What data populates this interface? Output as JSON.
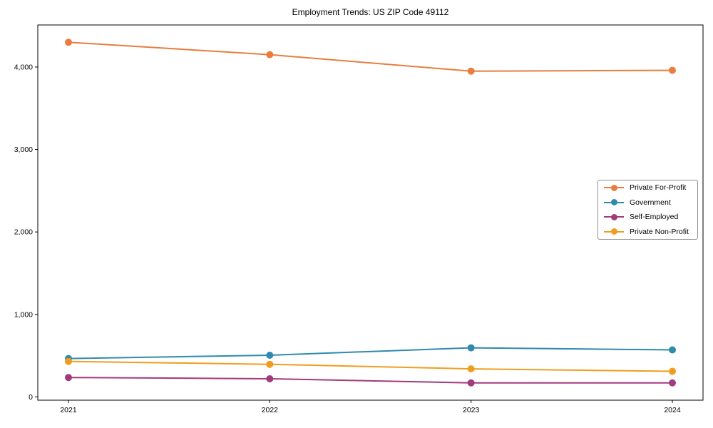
{
  "chart_data": {
    "type": "line",
    "title": "Employment Trends: US ZIP Code 49112",
    "categories": [
      "2021",
      "2022",
      "2023",
      "2024"
    ],
    "series": [
      {
        "name": "Private For-Profit",
        "color": "#e87d3e",
        "values": [
          4300,
          4150,
          3950,
          3960
        ]
      },
      {
        "name": "Government",
        "color": "#2e8bab",
        "values": [
          465,
          505,
          595,
          570
        ]
      },
      {
        "name": "Self-Employed",
        "color": "#a23a7e",
        "values": [
          235,
          220,
          170,
          170
        ]
      },
      {
        "name": "Private Non-Profit",
        "color": "#f09d1f",
        "values": [
          430,
          395,
          340,
          310
        ]
      }
    ],
    "xlabel": "",
    "ylabel": "",
    "ylim": [
      -40,
      4510
    ],
    "y_ticks": [
      0,
      1000,
      2000,
      3000,
      4000
    ],
    "y_tick_labels": [
      "0",
      "1,000",
      "2,000",
      "3,000",
      "4,000"
    ],
    "grid": false,
    "legend_position": "center-right",
    "axis_color": "#000000",
    "background_color": "#ffffff",
    "marker": "circle",
    "marker_radius": 5,
    "line_width": 2
  }
}
